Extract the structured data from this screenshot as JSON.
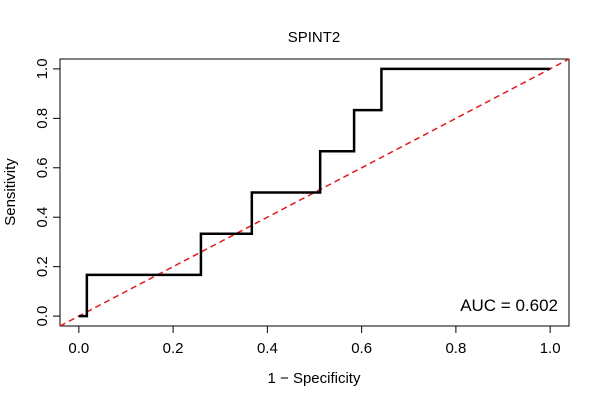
{
  "chart_data": {
    "type": "line",
    "title": "SPINT2",
    "xlabel": "1 − Specificity",
    "ylabel": "Sensitivity",
    "xlim": [
      -0.04,
      1.04
    ],
    "ylim": [
      -0.04,
      1.04
    ],
    "x_ticks": [
      0.0,
      0.2,
      0.4,
      0.6,
      0.8,
      1.0
    ],
    "x_tick_labels": [
      "0.0",
      "0.2",
      "0.4",
      "0.6",
      "0.8",
      "1.0"
    ],
    "y_ticks": [
      0.0,
      0.2,
      0.4,
      0.6,
      0.8,
      1.0
    ],
    "y_tick_labels": [
      "0.0",
      "0.2",
      "0.4",
      "0.6",
      "0.8",
      "1.0"
    ],
    "grid": false,
    "series": [
      {
        "name": "ROC curve",
        "color": "#000000",
        "style": "solid",
        "x": [
          0.0,
          0.017,
          0.017,
          0.259,
          0.259,
          0.367,
          0.367,
          0.512,
          0.512,
          0.584,
          0.584,
          0.642,
          0.642,
          1.0
        ],
        "y": [
          0.0,
          0.0,
          0.167,
          0.167,
          0.333,
          0.333,
          0.5,
          0.5,
          0.667,
          0.667,
          0.833,
          0.833,
          1.0,
          1.0
        ]
      },
      {
        "name": "chance diagonal",
        "color": "#e31a1c",
        "style": "dashed",
        "x": [
          -0.04,
          1.04
        ],
        "y": [
          -0.04,
          1.04
        ]
      }
    ],
    "annotations": [
      {
        "text": "AUC = 0.602",
        "placement": "bottom-right"
      }
    ]
  }
}
